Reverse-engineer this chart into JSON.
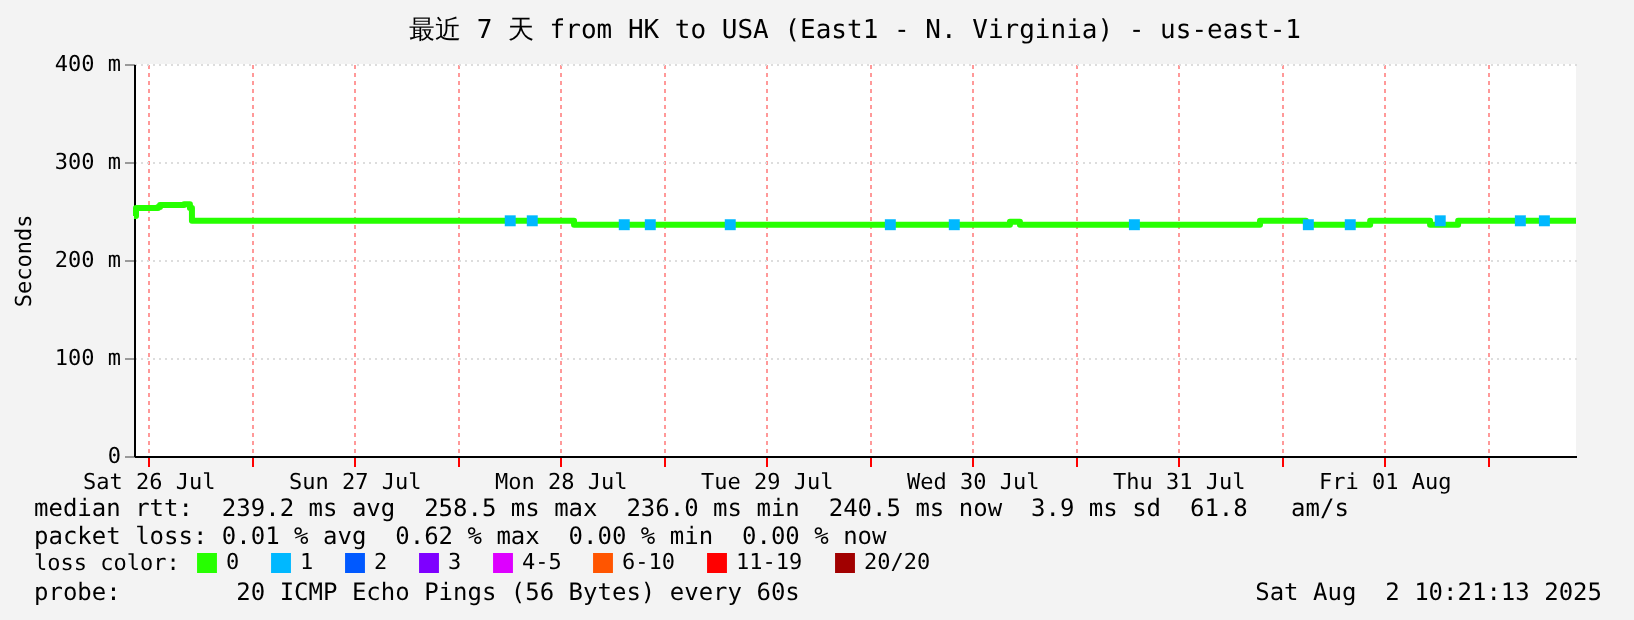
{
  "chart_data": {
    "type": "step",
    "title": "最近 7 天 from HK to USA (East1 - N. Virginia) - us-east-1",
    "ylabel": "Seconds",
    "legend_title": "loss color:",
    "legend": "bottom",
    "grid": true,
    "xlim": [
      "2025-07-26T10:21",
      "2025-08-02T10:21"
    ],
    "xticks": [
      {
        "value": "2025-07-26T12:00",
        "label": "Sat 26 Jul"
      },
      {
        "value": "2025-07-27T00:00",
        "label": null
      },
      {
        "value": "2025-07-27T12:00",
        "label": "Sun 27 Jul"
      },
      {
        "value": "2025-07-28T00:00",
        "label": null
      },
      {
        "value": "2025-07-28T12:00",
        "label": "Mon 28 Jul"
      },
      {
        "value": "2025-07-29T00:00",
        "label": null
      },
      {
        "value": "2025-07-29T12:00",
        "label": "Tue 29 Jul"
      },
      {
        "value": "2025-07-30T00:00",
        "label": null
      },
      {
        "value": "2025-07-30T12:00",
        "label": "Wed 30 Jul"
      },
      {
        "value": "2025-07-31T00:00",
        "label": null
      },
      {
        "value": "2025-07-31T12:00",
        "label": "Thu 31 Jul"
      },
      {
        "value": "2025-08-01T00:00",
        "label": null
      },
      {
        "value": "2025-08-01T12:00",
        "label": "Fri 01 Aug"
      },
      {
        "value": "2025-08-02T00:00",
        "label": null
      }
    ],
    "ylim": [
      0,
      400
    ],
    "yticks": [
      0,
      {
        "value": 100,
        "label": "100 m"
      },
      {
        "value": 200,
        "label": "200 m"
      },
      {
        "value": 300,
        "label": "300 m"
      },
      {
        "value": 400,
        "label": "400 m"
      }
    ],
    "series": [
      {
        "name": "0",
        "color": "#26ff00",
        "x": [
          "2025-07-26T10:21",
          "2025-07-26T10:35",
          "2025-07-26T13:09",
          "2025-07-26T13:23",
          "2025-07-26T16:11",
          "2025-07-26T16:52",
          "2025-07-26T17:06",
          "2025-07-28T13:37",
          "2025-07-30T16:24",
          "2025-07-30T17:34",
          "2025-07-31T21:32",
          "2025-08-01T02:53",
          "2025-08-01T05:14",
          "2025-08-01T10:22",
          "2025-08-01T17:21",
          "2025-08-01T20:37",
          "2025-08-02T10:21"
        ],
        "values": [
          245,
          253,
          254,
          256,
          257,
          253,
          240,
          236,
          239,
          236,
          240,
          236,
          236,
          240,
          236,
          240,
          240
        ]
      },
      {
        "name": "1",
        "color": "#00b8ff",
        "type": "scatter",
        "x": [
          "2025-07-28T06:11",
          "2025-07-28T08:45",
          "2025-07-28T19:28",
          "2025-07-28T22:30",
          "2025-07-29T07:49",
          "2025-07-30T02:28",
          "2025-07-30T09:55",
          "2025-07-31T06:54",
          "2025-08-01T03:10",
          "2025-08-01T08:03",
          "2025-08-01T18:32",
          "2025-08-02T03:52",
          "2025-08-02T06:40"
        ],
        "values": [
          240,
          240,
          236,
          236,
          236,
          236,
          236,
          236,
          236,
          236,
          240,
          240,
          240
        ]
      },
      {
        "name": "2",
        "color": "#0059ff",
        "type": "scatter"
      },
      {
        "name": "3",
        "color": "#7e00ff",
        "type": "scatter"
      },
      {
        "name": "4-5",
        "color": "#dd00ff",
        "type": "scatter"
      },
      {
        "name": "6-10",
        "color": "#ff5500",
        "type": "scatter"
      },
      {
        "name": "11-19",
        "color": "#ff0000",
        "type": "scatter"
      },
      {
        "name": "20/20",
        "color": "#a10000",
        "type": "scatter"
      }
    ],
    "annotations": [
      "median rtt:  239.2 ms avg  258.5 ms max  236.0 ms min  240.5 ms now  3.9 ms sd  61.8   am/s",
      "packet loss: 0.01 % avg  0.62 % max  0.00 % min  0.00 % now",
      "probe:        20 ICMP Echo Pings (56 Bytes) every 60s",
      "Sat Aug  2 10:21:13 2025"
    ]
  }
}
